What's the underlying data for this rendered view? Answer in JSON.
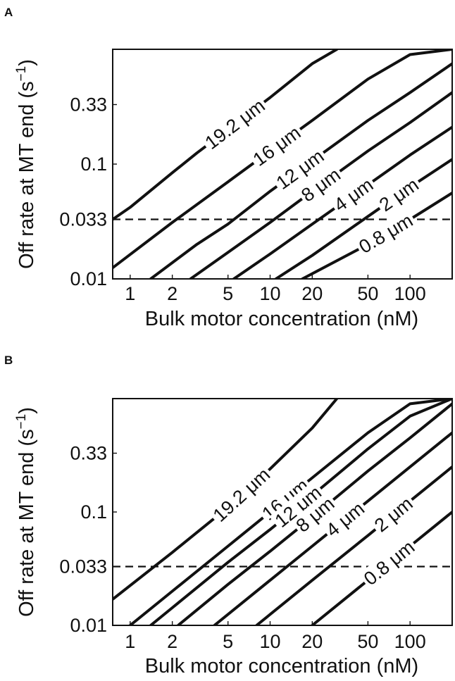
{
  "chart_data": [
    {
      "type": "line",
      "panel": "A",
      "xlabel": "Bulk motor concentration (nM)",
      "ylabel_main": "Off rate at MT end (s",
      "ylabel_exp": "−1",
      "ylabel_close": ")",
      "x_scale": "log",
      "y_scale": "log",
      "xlim": [
        0.75,
        200
      ],
      "ylim": [
        0.01,
        1.0
      ],
      "x_ticks": [
        1,
        2,
        5,
        10,
        20,
        50,
        100
      ],
      "x_tick_labels": [
        "1",
        "2",
        "5",
        "10",
        "20",
        "50",
        "100"
      ],
      "y_ticks": [
        0.01,
        0.033,
        0.1,
        0.33
      ],
      "y_tick_labels": [
        "0.01",
        "0.033",
        "0.1",
        "0.33"
      ],
      "reference_line": {
        "y": 0.033,
        "style": "dashed"
      },
      "series": [
        {
          "name": "19.2 μm",
          "x": [
            0.75,
            1,
            2,
            3,
            5,
            10,
            20,
            30
          ],
          "y": [
            0.033,
            0.042,
            0.084,
            0.125,
            0.2,
            0.38,
            0.75,
            1.0
          ]
        },
        {
          "name": "16 μm",
          "x": [
            0.75,
            2,
            5,
            10,
            20,
            50,
            100,
            200
          ],
          "y": [
            0.0125,
            0.031,
            0.07,
            0.13,
            0.24,
            0.55,
            0.9,
            1.0
          ]
        },
        {
          "name": "12 μm",
          "x": [
            1.4,
            3,
            5,
            10,
            20,
            50,
            100,
            200
          ],
          "y": [
            0.01,
            0.02,
            0.03,
            0.058,
            0.107,
            0.24,
            0.42,
            0.75
          ]
        },
        {
          "name": "8 μm",
          "x": [
            2.7,
            5,
            10,
            20,
            50,
            100,
            200
          ],
          "y": [
            0.01,
            0.017,
            0.031,
            0.058,
            0.13,
            0.23,
            0.42
          ]
        },
        {
          "name": "4 μm",
          "x": [
            5.5,
            10,
            20,
            50,
            100,
            200
          ],
          "y": [
            0.01,
            0.0165,
            0.03,
            0.066,
            0.12,
            0.21
          ]
        },
        {
          "name": "2 μm",
          "x": [
            11,
            20,
            50,
            100,
            200
          ],
          "y": [
            0.01,
            0.016,
            0.035,
            0.063,
            0.11
          ]
        },
        {
          "name": "0.8 μm",
          "x": [
            17,
            50,
            100,
            200
          ],
          "y": [
            0.01,
            0.02,
            0.033,
            0.056
          ]
        }
      ]
    },
    {
      "type": "line",
      "panel": "B",
      "xlabel": "Bulk motor concentration (nM)",
      "ylabel_main": "Off rate at MT end (s",
      "ylabel_exp": "−1",
      "ylabel_close": ")",
      "x_scale": "log",
      "y_scale": "log",
      "xlim": [
        0.75,
        200
      ],
      "ylim": [
        0.01,
        1.0
      ],
      "x_ticks": [
        1,
        2,
        5,
        10,
        20,
        50,
        100
      ],
      "x_tick_labels": [
        "1",
        "2",
        "5",
        "10",
        "20",
        "50",
        "100"
      ],
      "y_ticks": [
        0.01,
        0.033,
        0.1,
        0.33
      ],
      "y_tick_labels": [
        "0.01",
        "0.033",
        "0.1",
        "0.33"
      ],
      "reference_line": {
        "y": 0.033,
        "style": "dashed"
      },
      "series": [
        {
          "name": "19.2 μm",
          "x": [
            0.75,
            2,
            5,
            10,
            20,
            30
          ],
          "y": [
            0.017,
            0.044,
            0.11,
            0.24,
            0.55,
            1.0
          ]
        },
        {
          "name": "16 μm",
          "x": [
            1,
            2,
            5,
            10,
            20,
            50,
            100,
            200
          ],
          "y": [
            0.01,
            0.02,
            0.05,
            0.1,
            0.2,
            0.5,
            0.9,
            1.0
          ]
        },
        {
          "name": "12 μm",
          "x": [
            1.4,
            2,
            5,
            10,
            20,
            50,
            100,
            200
          ],
          "y": [
            0.01,
            0.0143,
            0.036,
            0.07,
            0.14,
            0.36,
            0.7,
            1.0
          ]
        },
        {
          "name": "8 μm",
          "x": [
            2.2,
            5,
            10,
            20,
            50,
            100,
            200
          ],
          "y": [
            0.01,
            0.023,
            0.045,
            0.09,
            0.23,
            0.45,
            0.9
          ]
        },
        {
          "name": "4 μm",
          "x": [
            4,
            10,
            20,
            50,
            100,
            200
          ],
          "y": [
            0.01,
            0.025,
            0.05,
            0.125,
            0.25,
            0.5
          ]
        },
        {
          "name": "2 μm",
          "x": [
            8,
            20,
            50,
            100,
            200
          ],
          "y": [
            0.01,
            0.025,
            0.062,
            0.125,
            0.25
          ]
        },
        {
          "name": "0.8 μm",
          "x": [
            20,
            50,
            100,
            200
          ],
          "y": [
            0.01,
            0.025,
            0.05,
            0.1
          ]
        }
      ]
    }
  ]
}
